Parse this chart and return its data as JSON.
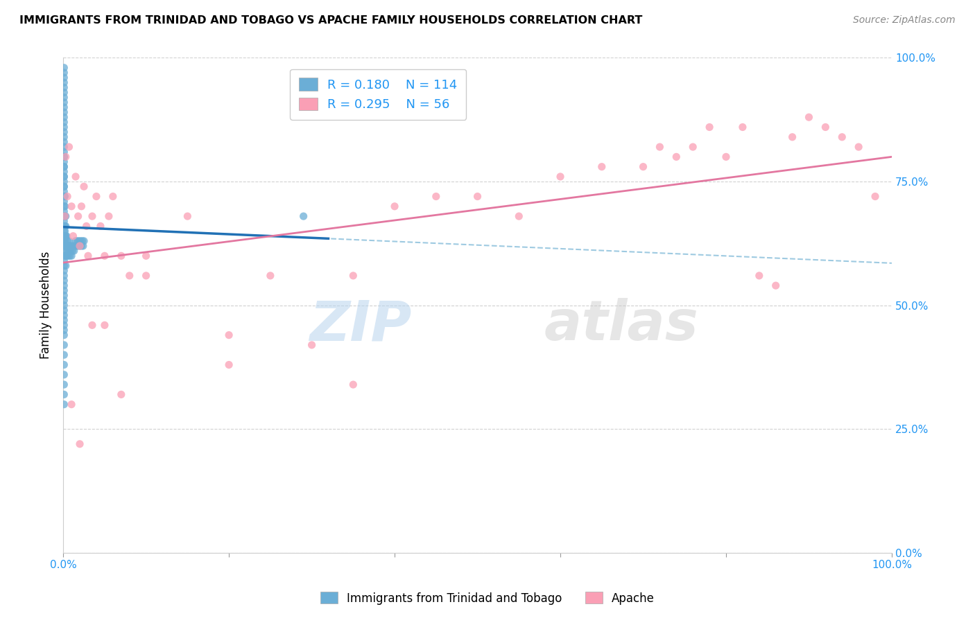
{
  "title": "IMMIGRANTS FROM TRINIDAD AND TOBAGO VS APACHE FAMILY HOUSEHOLDS CORRELATION CHART",
  "source": "Source: ZipAtlas.com",
  "ylabel": "Family Households",
  "yticks": [
    "0.0%",
    "25.0%",
    "50.0%",
    "75.0%",
    "100.0%"
  ],
  "legend_blue_R": "0.180",
  "legend_blue_N": "114",
  "legend_pink_R": "0.295",
  "legend_pink_N": "56",
  "legend_label_blue": "Immigrants from Trinidad and Tobago",
  "legend_label_pink": "Apache",
  "blue_color": "#6baed6",
  "pink_color": "#fa9fb5",
  "blue_line_color": "#2171b5",
  "pink_line_color": "#e377a0",
  "dashed_line_color": "#9ecae1",
  "watermark_zip": "ZIP",
  "watermark_atlas": "atlas",
  "bg_color": "#ffffff",
  "grid_color": "#cccccc",
  "blue_scatter_x": [
    0.001,
    0.001,
    0.001,
    0.001,
    0.001,
    0.001,
    0.001,
    0.001,
    0.001,
    0.001,
    0.001,
    0.001,
    0.001,
    0.001,
    0.001,
    0.001,
    0.001,
    0.001,
    0.001,
    0.001,
    0.001,
    0.001,
    0.001,
    0.001,
    0.001,
    0.001,
    0.001,
    0.001,
    0.001,
    0.001,
    0.002,
    0.002,
    0.002,
    0.002,
    0.002,
    0.002,
    0.002,
    0.002,
    0.002,
    0.002,
    0.003,
    0.003,
    0.003,
    0.003,
    0.003,
    0.003,
    0.004,
    0.004,
    0.004,
    0.005,
    0.005,
    0.006,
    0.006,
    0.007,
    0.007,
    0.008,
    0.008,
    0.009,
    0.01,
    0.01,
    0.011,
    0.012,
    0.013,
    0.014,
    0.015,
    0.016,
    0.017,
    0.018,
    0.019,
    0.02,
    0.021,
    0.022,
    0.023,
    0.024,
    0.025,
    0.001,
    0.001,
    0.001,
    0.001,
    0.001,
    0.001,
    0.001,
    0.001,
    0.001,
    0.001,
    0.001,
    0.001,
    0.001,
    0.001,
    0.001,
    0.001,
    0.001,
    0.001,
    0.001,
    0.001,
    0.001,
    0.001,
    0.001,
    0.001,
    0.001,
    0.001,
    0.001,
    0.001,
    0.001,
    0.001,
    0.001,
    0.001,
    0.001,
    0.001,
    0.29
  ],
  "blue_scatter_y": [
    0.62,
    0.63,
    0.64,
    0.65,
    0.66,
    0.67,
    0.68,
    0.69,
    0.7,
    0.71,
    0.72,
    0.73,
    0.74,
    0.75,
    0.76,
    0.77,
    0.78,
    0.79,
    0.8,
    0.81,
    0.82,
    0.83,
    0.84,
    0.85,
    0.86,
    0.87,
    0.88,
    0.89,
    0.9,
    0.91,
    0.6,
    0.61,
    0.62,
    0.63,
    0.64,
    0.65,
    0.66,
    0.68,
    0.7,
    0.72,
    0.58,
    0.6,
    0.62,
    0.64,
    0.66,
    0.68,
    0.6,
    0.62,
    0.64,
    0.61,
    0.63,
    0.6,
    0.62,
    0.61,
    0.63,
    0.6,
    0.62,
    0.61,
    0.6,
    0.62,
    0.61,
    0.62,
    0.61,
    0.62,
    0.63,
    0.62,
    0.63,
    0.62,
    0.63,
    0.62,
    0.63,
    0.62,
    0.63,
    0.62,
    0.63,
    0.55,
    0.56,
    0.57,
    0.58,
    0.59,
    0.92,
    0.93,
    0.94,
    0.95,
    0.96,
    0.97,
    0.98,
    0.5,
    0.51,
    0.52,
    0.53,
    0.54,
    0.48,
    0.49,
    0.46,
    0.47,
    0.44,
    0.45,
    0.42,
    0.4,
    0.38,
    0.36,
    0.34,
    0.32,
    0.3,
    0.74,
    0.76,
    0.78,
    0.8,
    0.68
  ],
  "pink_scatter_x": [
    0.002,
    0.003,
    0.005,
    0.007,
    0.01,
    0.012,
    0.015,
    0.018,
    0.02,
    0.022,
    0.025,
    0.028,
    0.03,
    0.035,
    0.04,
    0.045,
    0.05,
    0.055,
    0.06,
    0.07,
    0.08,
    0.1,
    0.15,
    0.2,
    0.25,
    0.3,
    0.35,
    0.4,
    0.45,
    0.5,
    0.55,
    0.6,
    0.65,
    0.7,
    0.72,
    0.74,
    0.76,
    0.78,
    0.8,
    0.82,
    0.84,
    0.86,
    0.88,
    0.9,
    0.92,
    0.94,
    0.96,
    0.98,
    0.01,
    0.02,
    0.035,
    0.05,
    0.07,
    0.1,
    0.2,
    0.35
  ],
  "pink_scatter_y": [
    0.68,
    0.8,
    0.72,
    0.82,
    0.7,
    0.64,
    0.76,
    0.68,
    0.62,
    0.7,
    0.74,
    0.66,
    0.6,
    0.68,
    0.72,
    0.66,
    0.6,
    0.68,
    0.72,
    0.6,
    0.56,
    0.6,
    0.68,
    0.44,
    0.56,
    0.42,
    0.56,
    0.7,
    0.72,
    0.72,
    0.68,
    0.76,
    0.78,
    0.78,
    0.82,
    0.8,
    0.82,
    0.86,
    0.8,
    0.86,
    0.56,
    0.54,
    0.84,
    0.88,
    0.86,
    0.84,
    0.82,
    0.72,
    0.3,
    0.22,
    0.46,
    0.46,
    0.32,
    0.56,
    0.38,
    0.34
  ]
}
